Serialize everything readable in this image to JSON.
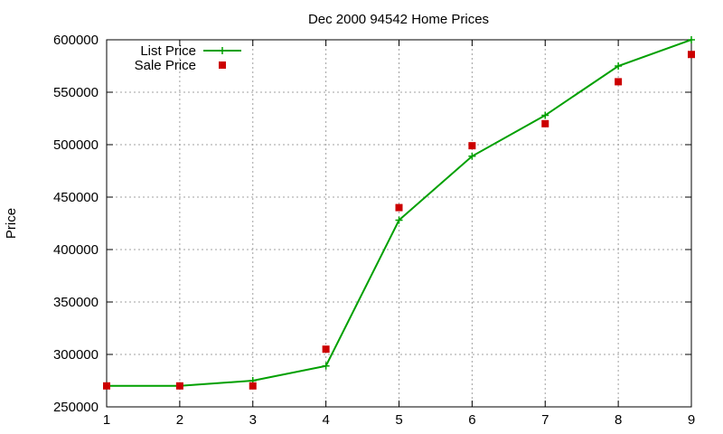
{
  "chart_data": {
    "type": "line",
    "title": "Dec 2000 94542 Home Prices",
    "xlabel": "",
    "ylabel": "Price",
    "x": [
      1,
      2,
      3,
      4,
      5,
      6,
      7,
      8,
      9
    ],
    "xlim": [
      1,
      9
    ],
    "ylim": [
      250000,
      600000
    ],
    "x_ticks": [
      "1",
      "2",
      "3",
      "4",
      "5",
      "6",
      "7",
      "8",
      "9"
    ],
    "y_ticks": [
      "250000",
      "300000",
      "350000",
      "400000",
      "450000",
      "500000",
      "550000",
      "600000"
    ],
    "grid": true,
    "legend_position": "top-left",
    "series": [
      {
        "name": "List Price",
        "style": "line-with-plus-markers",
        "color": "#00a000",
        "values": [
          270000,
          270000,
          275000,
          289000,
          428000,
          489000,
          528000,
          575000,
          600000
        ]
      },
      {
        "name": "Sale Price",
        "style": "square-markers",
        "color": "#cc0000",
        "values": [
          270000,
          270000,
          270000,
          305000,
          440000,
          499000,
          520000,
          560000,
          586000
        ]
      }
    ]
  }
}
